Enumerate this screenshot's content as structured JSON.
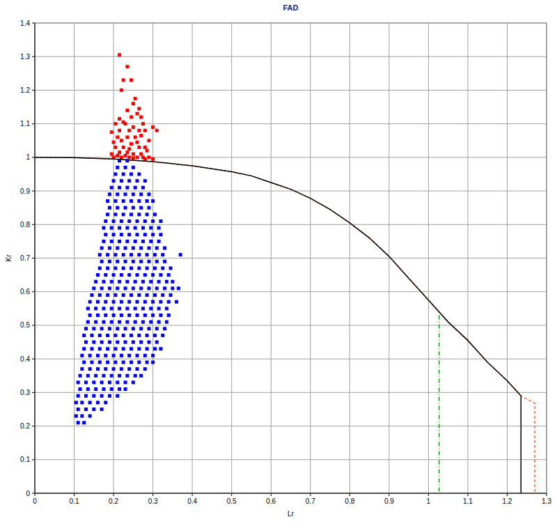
{
  "chart_data": {
    "type": "scatter",
    "title": "FAD",
    "x_label": "Lr",
    "y_label": "Kr",
    "xlim": [
      0,
      1.3
    ],
    "ylim": [
      0,
      1.4
    ],
    "xticks": [
      0,
      0.1,
      0.2,
      0.3,
      0.4,
      0.5,
      0.6,
      0.7,
      0.8,
      0.9,
      1,
      1.1,
      1.2,
      1.3
    ],
    "yticks": [
      0,
      0.1,
      0.2,
      0.3,
      0.4,
      0.5,
      0.6,
      0.7,
      0.8,
      0.9,
      1,
      1.1,
      1.2,
      1.3,
      1.4
    ],
    "grid": true,
    "series": [
      {
        "type": "scatter",
        "color": "#0000ff",
        "marker": "square",
        "x": [
          0.11,
          0.125,
          0.105,
          0.12,
          0.14,
          0.11,
          0.13,
          0.15,
          0.17,
          0.105,
          0.12,
          0.14,
          0.16,
          0.18,
          0.11,
          0.13,
          0.15,
          0.17,
          0.19,
          0.21,
          0.115,
          0.135,
          0.155,
          0.175,
          0.195,
          0.215,
          0.23,
          0.11,
          0.13,
          0.15,
          0.17,
          0.19,
          0.21,
          0.23,
          0.25,
          0.115,
          0.135,
          0.155,
          0.175,
          0.195,
          0.215,
          0.235,
          0.255,
          0.27,
          0.12,
          0.14,
          0.16,
          0.18,
          0.2,
          0.22,
          0.24,
          0.26,
          0.28,
          0.125,
          0.145,
          0.165,
          0.185,
          0.205,
          0.225,
          0.245,
          0.265,
          0.285,
          0.3,
          0.12,
          0.14,
          0.16,
          0.18,
          0.2,
          0.22,
          0.24,
          0.26,
          0.28,
          0.3,
          0.125,
          0.145,
          0.165,
          0.185,
          0.205,
          0.225,
          0.245,
          0.265,
          0.285,
          0.305,
          0.32,
          0.13,
          0.15,
          0.17,
          0.19,
          0.21,
          0.23,
          0.25,
          0.27,
          0.29,
          0.31,
          0.125,
          0.145,
          0.165,
          0.185,
          0.205,
          0.225,
          0.245,
          0.265,
          0.285,
          0.305,
          0.325,
          0.13,
          0.15,
          0.17,
          0.19,
          0.21,
          0.23,
          0.25,
          0.27,
          0.29,
          0.31,
          0.33,
          0.135,
          0.155,
          0.175,
          0.195,
          0.215,
          0.235,
          0.255,
          0.275,
          0.295,
          0.315,
          0.335,
          0.14,
          0.16,
          0.18,
          0.2,
          0.22,
          0.24,
          0.26,
          0.28,
          0.3,
          0.32,
          0.34,
          0.135,
          0.155,
          0.175,
          0.195,
          0.215,
          0.235,
          0.255,
          0.275,
          0.295,
          0.315,
          0.335,
          0.14,
          0.16,
          0.18,
          0.2,
          0.22,
          0.24,
          0.26,
          0.28,
          0.3,
          0.32,
          0.34,
          0.36,
          0.145,
          0.165,
          0.185,
          0.205,
          0.225,
          0.245,
          0.265,
          0.285,
          0.305,
          0.325,
          0.345,
          0.15,
          0.17,
          0.19,
          0.21,
          0.23,
          0.25,
          0.27,
          0.29,
          0.31,
          0.33,
          0.35,
          0.365,
          0.155,
          0.175,
          0.195,
          0.215,
          0.235,
          0.255,
          0.275,
          0.295,
          0.315,
          0.335,
          0.35,
          0.16,
          0.18,
          0.2,
          0.22,
          0.24,
          0.26,
          0.28,
          0.3,
          0.32,
          0.34,
          0.165,
          0.185,
          0.205,
          0.225,
          0.245,
          0.265,
          0.285,
          0.305,
          0.325,
          0.345,
          0.17,
          0.19,
          0.21,
          0.23,
          0.25,
          0.27,
          0.29,
          0.31,
          0.33,
          0.165,
          0.185,
          0.205,
          0.225,
          0.245,
          0.265,
          0.285,
          0.305,
          0.325,
          0.37,
          0.17,
          0.19,
          0.21,
          0.23,
          0.25,
          0.27,
          0.29,
          0.31,
          0.33,
          0.175,
          0.195,
          0.215,
          0.235,
          0.255,
          0.275,
          0.295,
          0.315,
          0.18,
          0.2,
          0.22,
          0.24,
          0.26,
          0.28,
          0.3,
          0.32,
          0.175,
          0.195,
          0.215,
          0.235,
          0.255,
          0.275,
          0.295,
          0.315,
          0.18,
          0.2,
          0.22,
          0.24,
          0.26,
          0.28,
          0.3,
          0.32,
          0.185,
          0.205,
          0.225,
          0.245,
          0.265,
          0.285,
          0.305,
          0.19,
          0.21,
          0.23,
          0.25,
          0.27,
          0.29,
          0.185,
          0.205,
          0.225,
          0.245,
          0.265,
          0.285,
          0.3,
          0.19,
          0.21,
          0.23,
          0.25,
          0.27,
          0.29,
          0.195,
          0.215,
          0.235,
          0.255,
          0.275,
          0.2,
          0.22,
          0.24,
          0.26,
          0.28,
          0.205,
          0.225,
          0.245,
          0.265,
          0.21,
          0.23,
          0.25,
          0.215,
          0.235
        ],
        "values": [
          0.21,
          0.21,
          0.23,
          0.23,
          0.23,
          0.25,
          0.25,
          0.25,
          0.25,
          0.27,
          0.27,
          0.27,
          0.27,
          0.27,
          0.29,
          0.29,
          0.29,
          0.29,
          0.29,
          0.29,
          0.31,
          0.31,
          0.31,
          0.31,
          0.31,
          0.31,
          0.31,
          0.33,
          0.33,
          0.33,
          0.33,
          0.33,
          0.33,
          0.33,
          0.33,
          0.35,
          0.35,
          0.35,
          0.35,
          0.35,
          0.35,
          0.35,
          0.35,
          0.35,
          0.37,
          0.37,
          0.37,
          0.37,
          0.37,
          0.37,
          0.37,
          0.37,
          0.37,
          0.39,
          0.39,
          0.39,
          0.39,
          0.39,
          0.39,
          0.39,
          0.39,
          0.39,
          0.39,
          0.41,
          0.41,
          0.41,
          0.41,
          0.41,
          0.41,
          0.41,
          0.41,
          0.41,
          0.41,
          0.43,
          0.43,
          0.43,
          0.43,
          0.43,
          0.43,
          0.43,
          0.43,
          0.43,
          0.43,
          0.43,
          0.45,
          0.45,
          0.45,
          0.45,
          0.45,
          0.45,
          0.45,
          0.45,
          0.45,
          0.45,
          0.47,
          0.47,
          0.47,
          0.47,
          0.47,
          0.47,
          0.47,
          0.47,
          0.47,
          0.47,
          0.47,
          0.49,
          0.49,
          0.49,
          0.49,
          0.49,
          0.49,
          0.49,
          0.49,
          0.49,
          0.49,
          0.49,
          0.51,
          0.51,
          0.51,
          0.51,
          0.51,
          0.51,
          0.51,
          0.51,
          0.51,
          0.51,
          0.51,
          0.53,
          0.53,
          0.53,
          0.53,
          0.53,
          0.53,
          0.53,
          0.53,
          0.53,
          0.53,
          0.53,
          0.55,
          0.55,
          0.55,
          0.55,
          0.55,
          0.55,
          0.55,
          0.55,
          0.55,
          0.55,
          0.55,
          0.57,
          0.57,
          0.57,
          0.57,
          0.57,
          0.57,
          0.57,
          0.57,
          0.57,
          0.57,
          0.57,
          0.57,
          0.59,
          0.59,
          0.59,
          0.59,
          0.59,
          0.59,
          0.59,
          0.59,
          0.59,
          0.59,
          0.59,
          0.61,
          0.61,
          0.61,
          0.61,
          0.61,
          0.61,
          0.61,
          0.61,
          0.61,
          0.61,
          0.61,
          0.61,
          0.63,
          0.63,
          0.63,
          0.63,
          0.63,
          0.63,
          0.63,
          0.63,
          0.63,
          0.63,
          0.63,
          0.65,
          0.65,
          0.65,
          0.65,
          0.65,
          0.65,
          0.65,
          0.65,
          0.65,
          0.65,
          0.67,
          0.67,
          0.67,
          0.67,
          0.67,
          0.67,
          0.67,
          0.67,
          0.67,
          0.67,
          0.69,
          0.69,
          0.69,
          0.69,
          0.69,
          0.69,
          0.69,
          0.69,
          0.69,
          0.71,
          0.71,
          0.71,
          0.71,
          0.71,
          0.71,
          0.71,
          0.71,
          0.71,
          0.71,
          0.73,
          0.73,
          0.73,
          0.73,
          0.73,
          0.73,
          0.73,
          0.73,
          0.73,
          0.75,
          0.75,
          0.75,
          0.75,
          0.75,
          0.75,
          0.75,
          0.75,
          0.77,
          0.77,
          0.77,
          0.77,
          0.77,
          0.77,
          0.77,
          0.77,
          0.79,
          0.79,
          0.79,
          0.79,
          0.79,
          0.79,
          0.79,
          0.79,
          0.81,
          0.81,
          0.81,
          0.81,
          0.81,
          0.81,
          0.81,
          0.81,
          0.83,
          0.83,
          0.83,
          0.83,
          0.83,
          0.83,
          0.83,
          0.85,
          0.85,
          0.85,
          0.85,
          0.85,
          0.85,
          0.87,
          0.87,
          0.87,
          0.87,
          0.87,
          0.87,
          0.87,
          0.89,
          0.89,
          0.89,
          0.89,
          0.89,
          0.89,
          0.91,
          0.91,
          0.91,
          0.91,
          0.91,
          0.93,
          0.93,
          0.93,
          0.93,
          0.93,
          0.95,
          0.95,
          0.95,
          0.95,
          0.97,
          0.97,
          0.97,
          0.99,
          0.99
        ]
      },
      {
        "type": "scatter",
        "color": "#ff0000",
        "marker": "square",
        "x": [
          0.215,
          0.235,
          0.225,
          0.245,
          0.22,
          0.255,
          0.25,
          0.235,
          0.265,
          0.245,
          0.26,
          0.27,
          0.215,
          0.225,
          0.23,
          0.205,
          0.275,
          0.25,
          0.3,
          0.31,
          0.195,
          0.215,
          0.24,
          0.265,
          0.28,
          0.21,
          0.235,
          0.255,
          0.27,
          0.2,
          0.22,
          0.245,
          0.26,
          0.29,
          0.205,
          0.225,
          0.24,
          0.265,
          0.28,
          0.195,
          0.215,
          0.235,
          0.25,
          0.27,
          0.285,
          0.2,
          0.22,
          0.24,
          0.26,
          0.28,
          0.3,
          0.21,
          0.23,
          0.25,
          0.275,
          0.29
        ],
        "values": [
          1.305,
          1.27,
          1.23,
          1.23,
          1.2,
          1.175,
          1.16,
          1.14,
          1.145,
          1.12,
          1.13,
          1.12,
          1.115,
          1.105,
          1.1,
          1.1,
          1.1,
          1.09,
          1.09,
          1.08,
          1.075,
          1.08,
          1.08,
          1.08,
          1.08,
          1.06,
          1.06,
          1.06,
          1.065,
          1.045,
          1.05,
          1.04,
          1.045,
          1.05,
          1.03,
          1.03,
          1.025,
          1.03,
          1.03,
          1.01,
          1.015,
          1.015,
          1.01,
          1.01,
          1.02,
          1.0,
          1.0,
          1.0,
          1.0,
          0.995,
          0.995,
          1.005,
          1.005,
          0.998,
          1.0,
          1.0
        ]
      },
      {
        "type": "line",
        "color": "#ff6633",
        "line_style": "dashed",
        "x": [
          0,
          0.1,
          0.2,
          0.3,
          0.4,
          0.5,
          0.55,
          0.6,
          0.65,
          0.7,
          0.75,
          0.8,
          0.85,
          0.9,
          0.95,
          1.0,
          1.05,
          1.1,
          1.15,
          1.2,
          1.235,
          1.27,
          1.27
        ],
        "values": [
          1,
          0.999,
          0.995,
          0.987,
          0.975,
          0.957,
          0.945,
          0.925,
          0.905,
          0.878,
          0.845,
          0.805,
          0.76,
          0.705,
          0.64,
          0.575,
          0.51,
          0.455,
          0.39,
          0.335,
          0.29,
          0.268,
          0
        ]
      },
      {
        "type": "line",
        "color": "#000000",
        "line_style": "solid",
        "x": [
          0,
          0.1,
          0.2,
          0.3,
          0.4,
          0.5,
          0.55,
          0.6,
          0.65,
          0.7,
          0.75,
          0.8,
          0.85,
          0.9,
          0.95,
          1.0,
          1.05,
          1.1,
          1.15,
          1.2,
          1.235
        ],
        "values": [
          1,
          0.999,
          0.995,
          0.987,
          0.975,
          0.957,
          0.945,
          0.925,
          0.905,
          0.878,
          0.845,
          0.805,
          0.76,
          0.705,
          0.64,
          0.575,
          0.51,
          0.455,
          0.39,
          0.335,
          0.29
        ]
      },
      {
        "type": "line",
        "color": "#000000",
        "line_style": "solid",
        "x": [
          1.235,
          1.235
        ],
        "values": [
          0.29,
          0
        ]
      },
      {
        "type": "line",
        "color": "#009900",
        "line_style": "dashdot",
        "x": [
          1.027,
          1.027
        ],
        "values": [
          0.53,
          0
        ]
      }
    ]
  }
}
